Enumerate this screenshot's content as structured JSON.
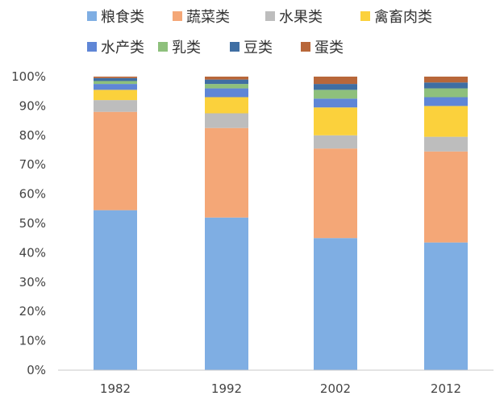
{
  "chart_data": {
    "type": "bar",
    "stacked": true,
    "normalized": true,
    "legend_position": "top",
    "categories": [
      "1982",
      "1992",
      "2002",
      "2012"
    ],
    "ylim": [
      0,
      100
    ],
    "y_ticks": [
      "0%",
      "10%",
      "20%",
      "30%",
      "40%",
      "50%",
      "60%",
      "70%",
      "80%",
      "90%",
      "100%"
    ],
    "grid": false,
    "series": [
      {
        "name": "粮食类",
        "color": "#7faee3",
        "values": [
          54.5,
          52,
          45,
          43.5
        ]
      },
      {
        "name": "蔬菜类",
        "color": "#f4a777",
        "values": [
          33.5,
          30.5,
          30.5,
          31
        ]
      },
      {
        "name": "水果类",
        "color": "#bdbdbd",
        "values": [
          4,
          5,
          4.5,
          5
        ]
      },
      {
        "name": "禽畜肉类",
        "color": "#fbd13c",
        "values": [
          3.5,
          5.5,
          9.5,
          10.5
        ]
      },
      {
        "name": "水产类",
        "color": "#5f86d6",
        "values": [
          2,
          3,
          3,
          3
        ]
      },
      {
        "name": "乳类",
        "color": "#8ec07c",
        "values": [
          1,
          1.5,
          3,
          3
        ]
      },
      {
        "name": "豆类",
        "color": "#3f6ea3",
        "values": [
          1,
          1.5,
          2,
          2
        ]
      },
      {
        "name": "蛋类",
        "color": "#b8673a",
        "values": [
          0.5,
          1,
          2.5,
          2
        ]
      }
    ]
  }
}
